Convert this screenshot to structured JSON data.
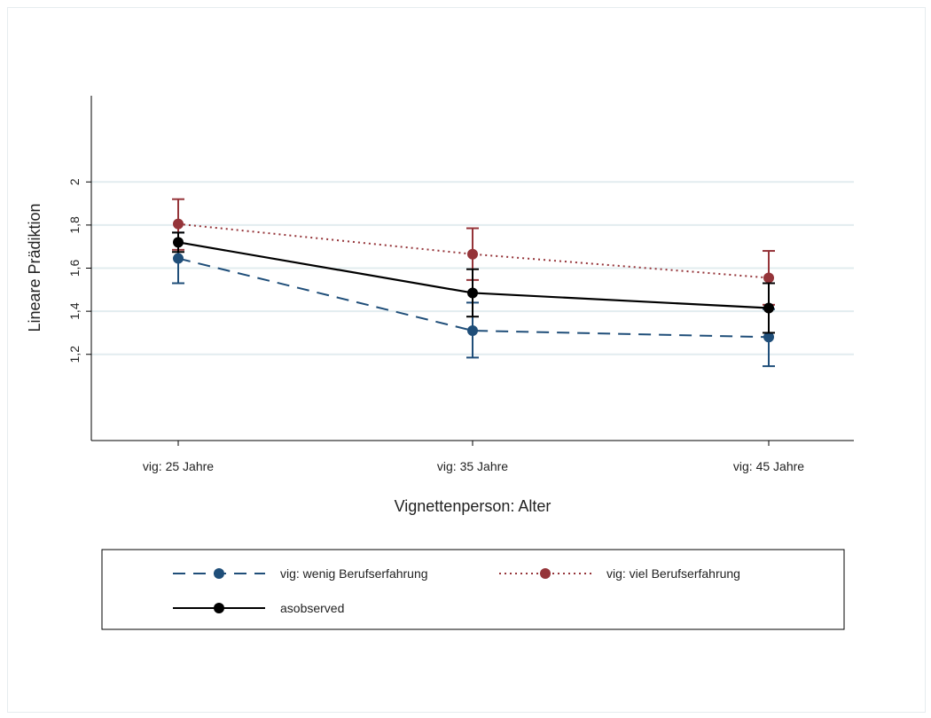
{
  "chart_data": {
    "type": "line",
    "xlabel": "Vignettenperson: Alter",
    "ylabel": "Lineare Prädiktion",
    "categories": [
      "vig: 25 Jahre",
      "vig: 35 Jahre",
      "vig: 45 Jahre"
    ],
    "ylim": [
      0.8,
      2.4
    ],
    "yticks": [
      1.2,
      1.4,
      1.6,
      1.8,
      2.0
    ],
    "ytick_labels": [
      "1,2",
      "1,4",
      "1,6",
      "1,8",
      "2"
    ],
    "grid": true,
    "legend_position": "bottom",
    "series": [
      {
        "name": "vig: wenig Berufserfahrung",
        "color": "#1f4e79",
        "line_style": "dashed",
        "values": [
          1.645,
          1.31,
          1.28
        ],
        "ci_low": [
          1.53,
          1.185,
          1.145
        ],
        "ci_high": [
          1.765,
          1.44,
          1.41
        ]
      },
      {
        "name": "vig: viel Berufserfahrung",
        "color": "#953439",
        "line_style": "dotted",
        "values": [
          1.805,
          1.665,
          1.555
        ],
        "ci_low": [
          1.685,
          1.545,
          1.43
        ],
        "ci_high": [
          1.92,
          1.785,
          1.68
        ]
      },
      {
        "name": "asobserved",
        "color": "#000000",
        "line_style": "solid",
        "values": [
          1.72,
          1.485,
          1.415
        ],
        "ci_low": [
          1.675,
          1.375,
          1.3
        ],
        "ci_high": [
          1.765,
          1.595,
          1.53
        ]
      }
    ]
  }
}
